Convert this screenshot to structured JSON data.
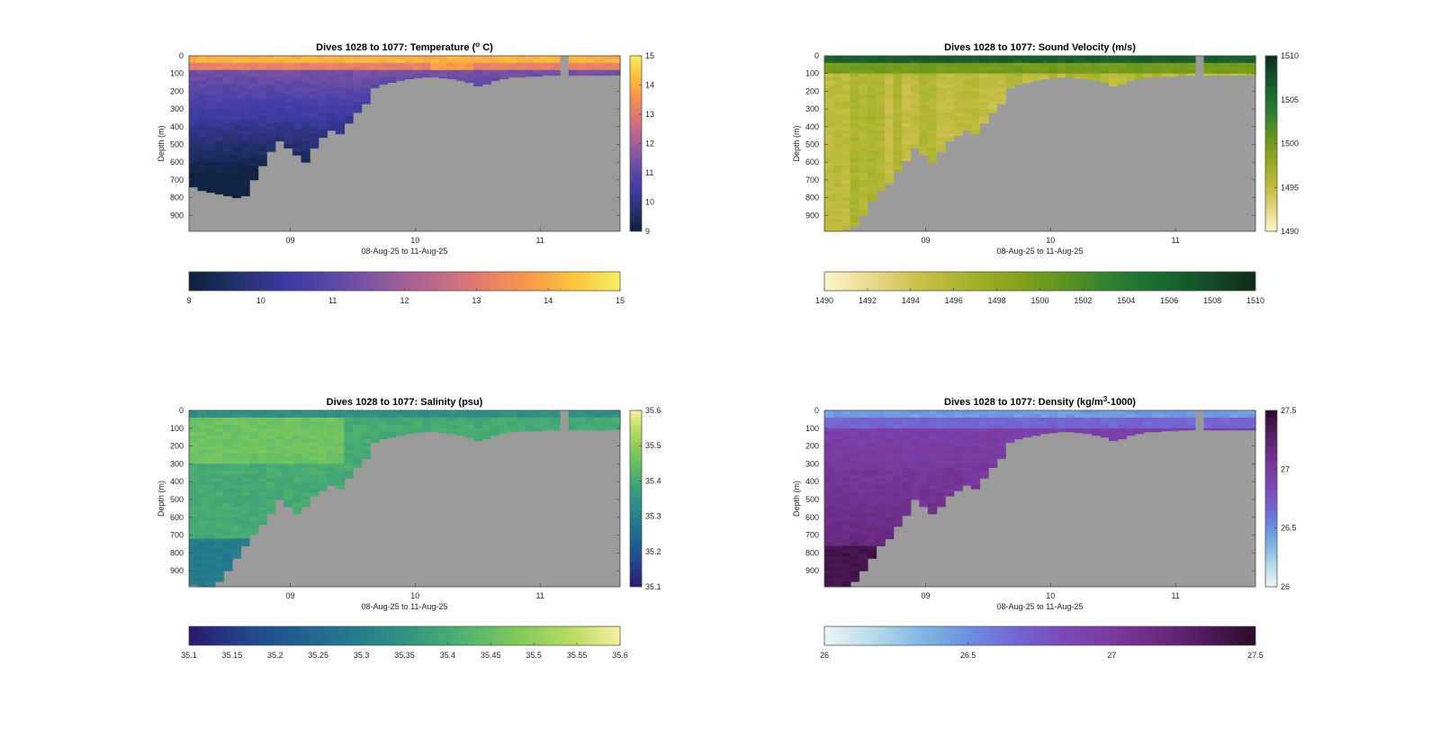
{
  "chart_data": [
    {
      "type": "heatmap",
      "title": "Dives 1028 to 1077: Temperature (",
      "title_sup": "o",
      "title_end": " C)",
      "xlabel": "08-Aug-25 to 11-Aug-25",
      "ylabel": "Depth (m)",
      "xticks": [
        "09",
        "10",
        "11"
      ],
      "xtick_values": [
        9.0,
        10.0,
        11.0
      ],
      "xlim": [
        8.19,
        11.64
      ],
      "yticks": [
        0,
        100,
        200,
        300,
        400,
        500,
        600,
        700,
        800,
        900
      ],
      "ylim": [
        0,
        990
      ],
      "colorbar_ticks": [
        "15",
        "14",
        "13",
        "12",
        "11",
        "10",
        "9"
      ],
      "horizontal_colorbar_ticks": [
        "9",
        "10",
        "11",
        "12",
        "13",
        "14",
        "15"
      ],
      "clim": [
        9,
        15
      ],
      "colormap": [
        "#0e1f3a",
        "#24306b",
        "#3a3aa0",
        "#5a47a8",
        "#8a58a0",
        "#b8658f",
        "#e07a70",
        "#f8954a",
        "#fbc33c",
        "#f6ee60"
      ],
      "surface_value": 13.8,
      "seafloor_depth": [
        740,
        760,
        770,
        780,
        790,
        800,
        790,
        700,
        620,
        540,
        480,
        520,
        560,
        600,
        520,
        460,
        420,
        440,
        380,
        320,
        270,
        180,
        160,
        150,
        140,
        130,
        125,
        120,
        120,
        125,
        130,
        140,
        150,
        170,
        160,
        140,
        130,
        120,
        120,
        115,
        115,
        110,
        110,
        110,
        110,
        110,
        110,
        110,
        110,
        110
      ]
    },
    {
      "type": "heatmap",
      "title": "Dives 1028 to 1077: Sound Velocity (m/s)",
      "xlabel": "08-Aug-25 to 11-Aug-25",
      "ylabel": "Depth (m)",
      "xticks": [
        "09",
        "10",
        "11"
      ],
      "xtick_values": [
        9.0,
        10.0,
        11.0
      ],
      "xlim": [
        8.19,
        11.64
      ],
      "yticks": [
        0,
        100,
        200,
        300,
        400,
        500,
        600,
        700,
        800,
        900
      ],
      "ylim": [
        0,
        990
      ],
      "colorbar_ticks": [
        "1510",
        "1505",
        "1500",
        "1495",
        "1490"
      ],
      "horizontal_colorbar_ticks": [
        "1490",
        "1492",
        "1494",
        "1496",
        "1498",
        "1500",
        "1502",
        "1504",
        "1506",
        "1508",
        "1510"
      ],
      "clim": [
        1490,
        1510
      ],
      "colormap": [
        "#fbf5c8",
        "#e6d98a",
        "#c9c04a",
        "#a7b22a",
        "#86a21c",
        "#5e9420",
        "#2f8030",
        "#1a6a30",
        "#144e28",
        "#0f2a1a"
      ],
      "surface_value": 1504,
      "seafloor_depth": [
        990,
        990,
        980,
        960,
        900,
        820,
        760,
        720,
        650,
        590,
        520,
        560,
        600,
        540,
        480,
        450,
        420,
        440,
        380,
        320,
        270,
        180,
        160,
        150,
        140,
        130,
        125,
        120,
        120,
        125,
        130,
        140,
        150,
        170,
        160,
        140,
        130,
        120,
        120,
        115,
        115,
        110,
        110,
        110,
        110,
        110,
        110,
        110,
        110,
        110
      ]
    },
    {
      "type": "heatmap",
      "title": "Dives 1028 to 1077: Salinity (psu)",
      "xlabel": "08-Aug-25 to 11-Aug-25",
      "ylabel": "Depth (m)",
      "xticks": [
        "09",
        "10",
        "11"
      ],
      "xtick_values": [
        9.0,
        10.0,
        11.0
      ],
      "xlim": [
        8.19,
        11.64
      ],
      "yticks": [
        0,
        100,
        200,
        300,
        400,
        500,
        600,
        700,
        800,
        900
      ],
      "ylim": [
        0,
        990
      ],
      "colorbar_ticks": [
        "35.6",
        "35.5",
        "35.4",
        "35.3",
        "35.2",
        "35.1"
      ],
      "horizontal_colorbar_ticks": [
        "35.1",
        "35.15",
        "35.2",
        "35.25",
        "35.3",
        "35.35",
        "35.4",
        "35.45",
        "35.5",
        "35.55",
        "35.6"
      ],
      "clim": [
        35.1,
        35.6
      ],
      "colormap": [
        "#2a1a6a",
        "#233e8a",
        "#1f5a90",
        "#23728f",
        "#2a898a",
        "#3aa07a",
        "#5ab86a",
        "#86cb5a",
        "#b8dc62",
        "#f8eea0"
      ],
      "surface_value": 35.32,
      "seafloor_depth": [
        980,
        990,
        990,
        960,
        900,
        830,
        760,
        700,
        640,
        580,
        500,
        540,
        580,
        540,
        480,
        450,
        420,
        440,
        380,
        320,
        270,
        180,
        160,
        150,
        140,
        130,
        125,
        120,
        120,
        125,
        130,
        140,
        150,
        170,
        160,
        140,
        130,
        120,
        120,
        115,
        115,
        110,
        110,
        110,
        110,
        110,
        110,
        110,
        110,
        110
      ]
    },
    {
      "type": "heatmap",
      "title": "Dives 1028 to 1077: Density (kg/m",
      "title_sup": "3",
      "title_end": "-1000)",
      "xlabel": "08-Aug-25 to 11-Aug-25",
      "ylabel": "Depth (m)",
      "xticks": [
        "09",
        "10",
        "11"
      ],
      "xtick_values": [
        9.0,
        10.0,
        11.0
      ],
      "xlim": [
        8.19,
        11.64
      ],
      "yticks": [
        0,
        100,
        200,
        300,
        400,
        500,
        600,
        700,
        800,
        900
      ],
      "ylim": [
        0,
        990
      ],
      "colorbar_ticks": [
        "27.5",
        "27",
        "26.5",
        "26"
      ],
      "horizontal_colorbar_ticks": [
        "26",
        "26.5",
        "27",
        "27.5"
      ],
      "clim": [
        26,
        27.5
      ],
      "colormap": [
        "#eef4f4",
        "#b8dcea",
        "#82b8e4",
        "#6c8fe0",
        "#7466d4",
        "#7c4ab8",
        "#7a3aa0",
        "#6a2a82",
        "#4e1a5a",
        "#2c0a2a"
      ],
      "surface_value": 26.5,
      "seafloor_depth": [
        990,
        990,
        990,
        960,
        900,
        830,
        760,
        720,
        650,
        590,
        500,
        540,
        580,
        540,
        480,
        450,
        420,
        440,
        380,
        320,
        270,
        180,
        160,
        150,
        140,
        130,
        125,
        120,
        120,
        125,
        130,
        140,
        150,
        170,
        160,
        140,
        130,
        120,
        120,
        115,
        115,
        110,
        110,
        110,
        110,
        110,
        110,
        110,
        110,
        110
      ]
    }
  ]
}
